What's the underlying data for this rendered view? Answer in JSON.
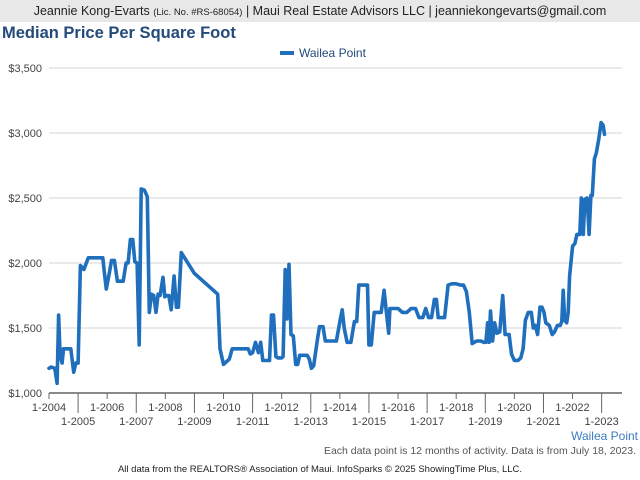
{
  "header": {
    "agent_name": "Jeannie Kong-Evarts",
    "license": "(Lic. No. #RS-68054)",
    "rest": "| Maui Real Estate Advisors LLC | jeanniekongevarts@gmail.com"
  },
  "footnote": "Each data point is 12 months of activity. Data is from July 18, 2023.",
  "credit": "All data from the REALTORS® Association of Maui. InfoSparks © 2025 ShowingTime Plus, LLC.",
  "chart_data": {
    "type": "line",
    "title": "Median Price Per Square Foot",
    "legend": {
      "position": "top-center",
      "entries": [
        "Wailea Point"
      ]
    },
    "area_label": "Wailea Point",
    "series_color": "#1f6fbd",
    "grid": true,
    "ylim": [
      1000,
      3500
    ],
    "y_ticks": [
      1000,
      1500,
      2000,
      2500,
      3000,
      3500
    ],
    "y_tick_labels": [
      "$1,000",
      "$1,500",
      "$2,000",
      "$2,500",
      "$3,000",
      "$3,500"
    ],
    "xlim": [
      2004.0,
      2023.7
    ],
    "x_ticks": [
      {
        "x": 2004,
        "label": "1-2004",
        "row": 0
      },
      {
        "x": 2005,
        "label": "1-2005",
        "row": 1
      },
      {
        "x": 2006,
        "label": "1-2006",
        "row": 0
      },
      {
        "x": 2007,
        "label": "1-2007",
        "row": 1
      },
      {
        "x": 2008,
        "label": "1-2008",
        "row": 0
      },
      {
        "x": 2009,
        "label": "1-2009",
        "row": 1
      },
      {
        "x": 2010,
        "label": "1-2010",
        "row": 0
      },
      {
        "x": 2011,
        "label": "1-2011",
        "row": 1
      },
      {
        "x": 2012,
        "label": "1-2012",
        "row": 0
      },
      {
        "x": 2013,
        "label": "1-2013",
        "row": 1
      },
      {
        "x": 2014,
        "label": "1-2014",
        "row": 0
      },
      {
        "x": 2015,
        "label": "1-2015",
        "row": 1
      },
      {
        "x": 2016,
        "label": "1-2016",
        "row": 0
      },
      {
        "x": 2017,
        "label": "1-2017",
        "row": 1
      },
      {
        "x": 2018,
        "label": "1-2018",
        "row": 0
      },
      {
        "x": 2019,
        "label": "1-2019",
        "row": 1
      },
      {
        "x": 2020,
        "label": "1-2020",
        "row": 0
      },
      {
        "x": 2021,
        "label": "1-2021",
        "row": 1
      },
      {
        "x": 2022,
        "label": "1-2022",
        "row": 0
      },
      {
        "x": 2023,
        "label": "1-2023",
        "row": 1
      }
    ],
    "series": [
      {
        "name": "Wailea Point",
        "points": [
          [
            2004.0,
            1190
          ],
          [
            2004.08,
            1200
          ],
          [
            2004.2,
            1190
          ],
          [
            2004.28,
            1075
          ],
          [
            2004.33,
            1600
          ],
          [
            2004.38,
            1290
          ],
          [
            2004.45,
            1230
          ],
          [
            2004.5,
            1340
          ],
          [
            2004.6,
            1340
          ],
          [
            2004.75,
            1340
          ],
          [
            2004.85,
            1160
          ],
          [
            2004.92,
            1230
          ],
          [
            2005.0,
            1230
          ],
          [
            2005.08,
            1980
          ],
          [
            2005.2,
            1950
          ],
          [
            2005.35,
            2040
          ],
          [
            2005.5,
            2040
          ],
          [
            2005.7,
            2040
          ],
          [
            2005.85,
            2040
          ],
          [
            2005.9,
            1930
          ],
          [
            2005.97,
            1800
          ],
          [
            2006.08,
            1930
          ],
          [
            2006.15,
            2020
          ],
          [
            2006.25,
            2020
          ],
          [
            2006.35,
            1860
          ],
          [
            2006.55,
            1860
          ],
          [
            2006.65,
            2000
          ],
          [
            2006.72,
            2000
          ],
          [
            2006.8,
            2180
          ],
          [
            2006.88,
            2180
          ],
          [
            2006.95,
            2010
          ],
          [
            2007.03,
            2000
          ],
          [
            2007.1,
            1370
          ],
          [
            2007.17,
            2570
          ],
          [
            2007.28,
            2560
          ],
          [
            2007.38,
            2510
          ],
          [
            2007.45,
            1620
          ],
          [
            2007.52,
            1760
          ],
          [
            2007.6,
            1750
          ],
          [
            2007.68,
            1620
          ],
          [
            2007.75,
            1760
          ],
          [
            2007.82,
            1750
          ],
          [
            2007.92,
            1890
          ],
          [
            2007.98,
            1740
          ],
          [
            2008.05,
            1750
          ],
          [
            2008.12,
            1750
          ],
          [
            2008.2,
            1640
          ],
          [
            2008.3,
            1900
          ],
          [
            2008.38,
            1660
          ],
          [
            2008.45,
            1660
          ],
          [
            2008.55,
            2080
          ],
          [
            2009.0,
            1920
          ],
          [
            2009.8,
            1760
          ],
          [
            2009.88,
            1340
          ],
          [
            2010.0,
            1220
          ],
          [
            2010.2,
            1260
          ],
          [
            2010.3,
            1340
          ],
          [
            2010.5,
            1340
          ],
          [
            2010.85,
            1340
          ],
          [
            2010.92,
            1300
          ],
          [
            2011.0,
            1310
          ],
          [
            2011.1,
            1390
          ],
          [
            2011.2,
            1310
          ],
          [
            2011.28,
            1390
          ],
          [
            2011.35,
            1250
          ],
          [
            2011.5,
            1250
          ],
          [
            2011.58,
            1250
          ],
          [
            2011.65,
            1600
          ],
          [
            2011.72,
            1600
          ],
          [
            2011.8,
            1280
          ],
          [
            2011.87,
            1270
          ],
          [
            2012.0,
            1270
          ],
          [
            2012.05,
            1280
          ],
          [
            2012.12,
            1950
          ],
          [
            2012.18,
            1570
          ],
          [
            2012.25,
            1990
          ],
          [
            2012.32,
            1450
          ],
          [
            2012.4,
            1440
          ],
          [
            2012.48,
            1220
          ],
          [
            2012.55,
            1220
          ],
          [
            2012.62,
            1290
          ],
          [
            2012.75,
            1290
          ],
          [
            2012.88,
            1290
          ],
          [
            2012.95,
            1260
          ],
          [
            2013.02,
            1190
          ],
          [
            2013.1,
            1210
          ],
          [
            2013.22,
            1400
          ],
          [
            2013.3,
            1510
          ],
          [
            2013.42,
            1510
          ],
          [
            2013.5,
            1400
          ],
          [
            2013.65,
            1400
          ],
          [
            2013.88,
            1400
          ],
          [
            2014.0,
            1550
          ],
          [
            2014.08,
            1640
          ],
          [
            2014.15,
            1500
          ],
          [
            2014.25,
            1390
          ],
          [
            2014.38,
            1390
          ],
          [
            2014.5,
            1550
          ],
          [
            2014.58,
            1550
          ],
          [
            2014.65,
            1830
          ],
          [
            2014.78,
            1830
          ],
          [
            2014.95,
            1830
          ],
          [
            2015.0,
            1370
          ],
          [
            2015.08,
            1370
          ],
          [
            2015.18,
            1620
          ],
          [
            2015.3,
            1620
          ],
          [
            2015.42,
            1620
          ],
          [
            2015.52,
            1790
          ],
          [
            2015.6,
            1620
          ],
          [
            2015.68,
            1460
          ],
          [
            2015.72,
            1650
          ],
          [
            2015.85,
            1650
          ],
          [
            2016.0,
            1650
          ],
          [
            2016.15,
            1620
          ],
          [
            2016.3,
            1620
          ],
          [
            2016.45,
            1650
          ],
          [
            2016.6,
            1650
          ],
          [
            2016.72,
            1580
          ],
          [
            2016.85,
            1580
          ],
          [
            2016.95,
            1650
          ],
          [
            2017.05,
            1580
          ],
          [
            2017.15,
            1580
          ],
          [
            2017.25,
            1720
          ],
          [
            2017.32,
            1720
          ],
          [
            2017.38,
            1580
          ],
          [
            2017.5,
            1580
          ],
          [
            2017.6,
            1580
          ],
          [
            2017.72,
            1830
          ],
          [
            2017.85,
            1840
          ],
          [
            2018.0,
            1840
          ],
          [
            2018.15,
            1830
          ],
          [
            2018.25,
            1830
          ],
          [
            2018.35,
            1780
          ],
          [
            2018.45,
            1620
          ],
          [
            2018.55,
            1380
          ],
          [
            2018.7,
            1400
          ],
          [
            2018.85,
            1400
          ],
          [
            2018.95,
            1390
          ],
          [
            2019.02,
            1390
          ],
          [
            2019.08,
            1540
          ],
          [
            2019.13,
            1390
          ],
          [
            2019.18,
            1630
          ],
          [
            2019.25,
            1400
          ],
          [
            2019.32,
            1540
          ],
          [
            2019.4,
            1460
          ],
          [
            2019.5,
            1470
          ],
          [
            2019.6,
            1750
          ],
          [
            2019.68,
            1450
          ],
          [
            2019.75,
            1450
          ],
          [
            2019.82,
            1450
          ],
          [
            2019.9,
            1300
          ],
          [
            2020.0,
            1250
          ],
          [
            2020.12,
            1250
          ],
          [
            2020.22,
            1270
          ],
          [
            2020.3,
            1340
          ],
          [
            2020.38,
            1560
          ],
          [
            2020.48,
            1620
          ],
          [
            2020.58,
            1620
          ],
          [
            2020.65,
            1500
          ],
          [
            2020.72,
            1520
          ],
          [
            2020.8,
            1450
          ],
          [
            2020.88,
            1660
          ],
          [
            2020.95,
            1660
          ],
          [
            2021.02,
            1620
          ],
          [
            2021.08,
            1540
          ],
          [
            2021.2,
            1520
          ],
          [
            2021.3,
            1450
          ],
          [
            2021.38,
            1470
          ],
          [
            2021.48,
            1520
          ],
          [
            2021.58,
            1520
          ],
          [
            2021.63,
            1550
          ],
          [
            2021.68,
            1790
          ],
          [
            2021.73,
            1560
          ],
          [
            2021.8,
            1540
          ],
          [
            2021.85,
            1620
          ],
          [
            2021.9,
            1900
          ],
          [
            2022.0,
            2130
          ],
          [
            2022.08,
            2150
          ],
          [
            2022.15,
            2220
          ],
          [
            2022.25,
            2220
          ],
          [
            2022.3,
            2500
          ],
          [
            2022.37,
            2220
          ],
          [
            2022.42,
            2490
          ],
          [
            2022.5,
            2500
          ],
          [
            2022.57,
            2220
          ],
          [
            2022.63,
            2520
          ],
          [
            2022.68,
            2520
          ],
          [
            2022.75,
            2800
          ],
          [
            2022.82,
            2850
          ],
          [
            2022.9,
            2950
          ],
          [
            2022.98,
            3080
          ],
          [
            2023.05,
            3060
          ],
          [
            2023.1,
            2990
          ]
        ]
      }
    ]
  }
}
